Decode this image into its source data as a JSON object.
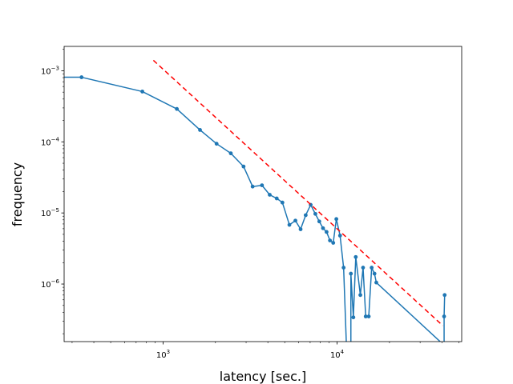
{
  "chart_data": {
    "type": "line",
    "title": "",
    "xlabel": "latency [sec.]",
    "ylabel": "frequency",
    "xscale": "log",
    "yscale": "log",
    "xlim": [
      270,
      52000
    ],
    "ylim": [
      1.55e-07,
      0.0022
    ],
    "grid": false,
    "legend": "none",
    "x_ticks": [
      {
        "value": 1000,
        "base": "10",
        "exp": "3"
      },
      {
        "value": 10000,
        "base": "10",
        "exp": "4"
      }
    ],
    "y_ticks": [
      {
        "value": 1e-06,
        "base": "10",
        "exp": "−6"
      },
      {
        "value": 1e-05,
        "base": "10",
        "exp": "−5"
      },
      {
        "value": 0.0001,
        "base": "10",
        "exp": "−4"
      },
      {
        "value": 0.001,
        "base": "10",
        "exp": "−3"
      }
    ],
    "series": [
      {
        "color": "#1f77b4",
        "style": "line-markers",
        "x": [
          270,
          340,
          760,
          1200,
          1630,
          2030,
          2450,
          2900,
          3270,
          3700,
          4100,
          4500,
          4850,
          5320,
          5760,
          6170,
          6600,
          7050,
          7500,
          7900,
          8300,
          8700,
          9100,
          9500,
          9900,
          10400,
          10900,
          11300,
          12000,
          12400,
          12800,
          13600,
          14100,
          14600,
          15200,
          15800,
          16400,
          16800,
          40000,
          41200,
          41500
        ],
        "y": [
          0.00081,
          0.00081,
          0.00051,
          0.00029,
          0.000147,
          9.4e-05,
          6.9e-05,
          4.5e-05,
          2.35e-05,
          2.45e-05,
          1.8e-05,
          1.6e-05,
          1.4e-05,
          6.8e-06,
          7.8e-06,
          5.9e-06,
          9.3e-06,
          1.3e-05,
          9.7e-06,
          7.6e-06,
          6.1e-06,
          5.4e-06,
          4.1e-06,
          3.8e-06,
          8.2e-06,
          4.8e-06,
          1.7e-06,
          null,
          1.4e-06,
          3.4e-07,
          2.4e-06,
          7e-07,
          1.7e-06,
          3.5e-07,
          3.5e-07,
          1.7e-06,
          1.4e-06,
          1.05e-06,
          null,
          3.5e-07,
          7e-07
        ],
        "markers": [
          false,
          true,
          true,
          true,
          true,
          true,
          true,
          true,
          true,
          true,
          true,
          true,
          true,
          true,
          true,
          true,
          true,
          true,
          true,
          true,
          true,
          true,
          true,
          true,
          true,
          true,
          true,
          false,
          true,
          true,
          true,
          true,
          true,
          true,
          true,
          true,
          true,
          true,
          false,
          true,
          true
        ]
      },
      {
        "color": "#ff0000",
        "style": "dashed",
        "x": [
          880,
          40500
        ],
        "y": [
          0.0014,
          2.6e-07
        ]
      }
    ]
  }
}
